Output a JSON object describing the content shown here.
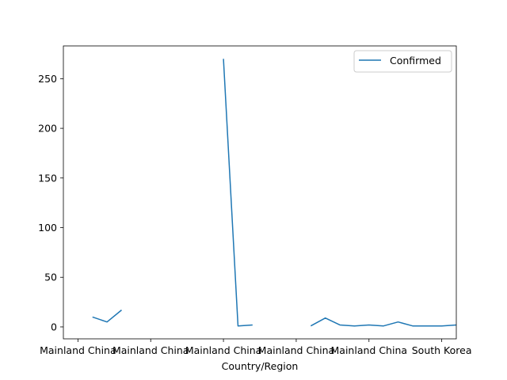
{
  "chart_data": {
    "type": "line",
    "xlabel": "Country/Region",
    "ylabel": "",
    "ylim": [
      -12,
      283
    ],
    "xlim": [
      -1,
      26
    ],
    "grid": false,
    "legend_position": "top-right",
    "x_ticks": [
      {
        "pos": 0,
        "label": "Mainland China"
      },
      {
        "pos": 5,
        "label": "Mainland China"
      },
      {
        "pos": 10,
        "label": "Mainland China"
      },
      {
        "pos": 15,
        "label": "Mainland China"
      },
      {
        "pos": 20,
        "label": "Mainland China"
      },
      {
        "pos": 25,
        "label": "South Korea"
      }
    ],
    "y_ticks": [
      0,
      50,
      100,
      150,
      200,
      250
    ],
    "series": [
      {
        "name": "Confirmed",
        "color": "#1f77b4",
        "points": [
          [
            1,
            10
          ],
          [
            2,
            5
          ],
          [
            3,
            17
          ],
          [
            4,
            null
          ],
          [
            5,
            null
          ],
          [
            6,
            null
          ],
          [
            7,
            null
          ],
          [
            8,
            null
          ],
          [
            9,
            null
          ],
          [
            10,
            270
          ],
          [
            11,
            1
          ],
          [
            12,
            2
          ],
          [
            13,
            null
          ],
          [
            14,
            null
          ],
          [
            15,
            null
          ],
          [
            16,
            1
          ],
          [
            17,
            9
          ],
          [
            18,
            2
          ],
          [
            19,
            1
          ],
          [
            20,
            2
          ],
          [
            21,
            1
          ],
          [
            22,
            5
          ],
          [
            23,
            1
          ],
          [
            24,
            1
          ],
          [
            25,
            1
          ],
          [
            26,
            2
          ]
        ]
      }
    ]
  }
}
